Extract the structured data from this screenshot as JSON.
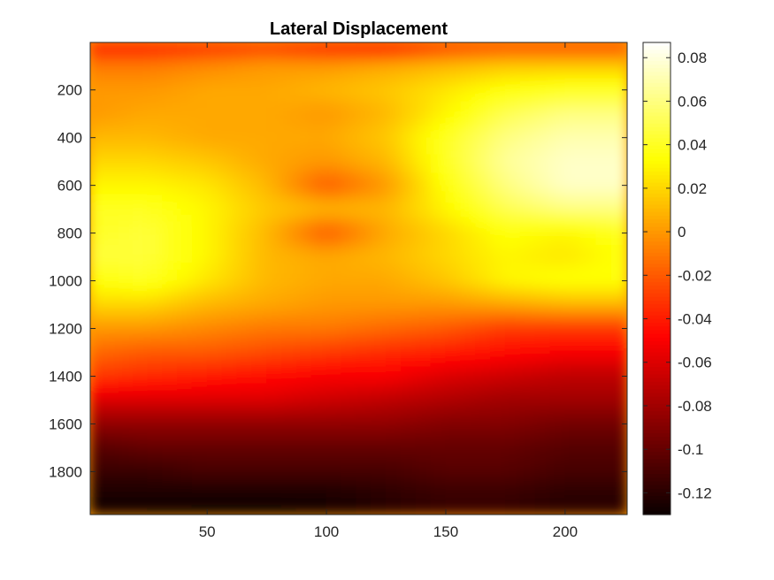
{
  "chart_data": {
    "type": "heatmap",
    "title": "Lateral Displacement",
    "xlabel": "",
    "ylabel": "",
    "xlim": [
      1,
      226
    ],
    "ylim": [
      1,
      1980
    ],
    "y_direction": "reversed",
    "x_ticks": [
      50,
      100,
      150,
      200
    ],
    "x_tick_labels": [
      "50",
      "100",
      "150",
      "200"
    ],
    "y_ticks": [
      200,
      400,
      600,
      800,
      1000,
      1200,
      1400,
      1600,
      1800
    ],
    "y_tick_labels": [
      "200",
      "400",
      "600",
      "800",
      "1000",
      "1200",
      "1400",
      "1600",
      "1800"
    ],
    "colormap": "hot",
    "clim": [
      -0.13,
      0.087
    ],
    "colorbar_ticks": [
      0.08,
      0.06,
      0.04,
      0.02,
      0,
      -0.02,
      -0.04,
      -0.06,
      -0.08,
      -0.1,
      -0.12
    ],
    "colorbar_tick_labels": [
      "0.08",
      "0.06",
      "0.04",
      "0.02",
      "0",
      "-0.02",
      "-0.04",
      "-0.06",
      "-0.08",
      "-0.1",
      "-0.12"
    ],
    "grid": false,
    "colorbar": "right",
    "grid_x": [
      1,
      25,
      50,
      75,
      100,
      125,
      150,
      175,
      200,
      226
    ],
    "grid_y": [
      1,
      100,
      200,
      300,
      400,
      500,
      600,
      700,
      800,
      900,
      1000,
      1100,
      1200,
      1300,
      1400,
      1500,
      1600,
      1700,
      1800,
      1900,
      1980
    ],
    "values": [
      [
        -0.045,
        -0.045,
        -0.04,
        -0.035,
        -0.045,
        -0.05,
        -0.035,
        -0.03,
        -0.03,
        -0.03
      ],
      [
        -0.01,
        -0.01,
        -0.005,
        0.0,
        0.0,
        0.005,
        0.01,
        0.015,
        0.015,
        0.015
      ],
      [
        0.0,
        0.0,
        0.005,
        0.005,
        0.01,
        0.015,
        0.025,
        0.035,
        0.04,
        0.04
      ],
      [
        0.0,
        0.005,
        0.005,
        0.005,
        0.0,
        0.01,
        0.03,
        0.05,
        0.06,
        0.06
      ],
      [
        0.01,
        0.01,
        0.005,
        0.005,
        0.005,
        0.015,
        0.04,
        0.06,
        0.07,
        0.07
      ],
      [
        0.02,
        0.02,
        0.015,
        0.005,
        0.0,
        0.01,
        0.04,
        0.065,
        0.075,
        0.075
      ],
      [
        0.03,
        0.03,
        0.025,
        0.01,
        -0.02,
        0.0,
        0.035,
        0.06,
        0.075,
        0.075
      ],
      [
        0.04,
        0.04,
        0.03,
        0.015,
        0.01,
        0.01,
        0.03,
        0.05,
        0.06,
        0.06
      ],
      [
        0.04,
        0.045,
        0.03,
        0.01,
        -0.02,
        0.005,
        0.02,
        0.035,
        0.03,
        0.04
      ],
      [
        0.045,
        0.045,
        0.03,
        0.01,
        0.005,
        0.01,
        0.02,
        0.03,
        0.025,
        0.035
      ],
      [
        0.035,
        0.04,
        0.025,
        0.01,
        0.005,
        0.005,
        0.015,
        0.03,
        0.035,
        0.035
      ],
      [
        0.02,
        0.02,
        0.01,
        0.005,
        0.0,
        0.0,
        0.0,
        0.005,
        0.01,
        0.01
      ],
      [
        0.0,
        0.0,
        -0.005,
        -0.01,
        -0.01,
        -0.015,
        -0.02,
        -0.03,
        -0.03,
        -0.03
      ],
      [
        -0.015,
        -0.02,
        -0.02,
        -0.025,
        -0.03,
        -0.035,
        -0.04,
        -0.045,
        -0.05,
        -0.05
      ],
      [
        -0.03,
        -0.035,
        -0.04,
        -0.045,
        -0.05,
        -0.05,
        -0.06,
        -0.065,
        -0.07,
        -0.07
      ],
      [
        -0.06,
        -0.06,
        -0.06,
        -0.06,
        -0.065,
        -0.07,
        -0.075,
        -0.08,
        -0.08,
        -0.08
      ],
      [
        -0.085,
        -0.085,
        -0.085,
        -0.085,
        -0.085,
        -0.085,
        -0.09,
        -0.09,
        -0.095,
        -0.095
      ],
      [
        -0.105,
        -0.1,
        -0.1,
        -0.1,
        -0.1,
        -0.1,
        -0.1,
        -0.1,
        -0.105,
        -0.105
      ],
      [
        -0.115,
        -0.115,
        -0.11,
        -0.11,
        -0.11,
        -0.11,
        -0.105,
        -0.105,
        -0.11,
        -0.11
      ],
      [
        -0.125,
        -0.125,
        -0.125,
        -0.125,
        -0.125,
        -0.12,
        -0.115,
        -0.115,
        -0.12,
        -0.12
      ],
      [
        -0.125,
        -0.128,
        -0.13,
        -0.13,
        -0.125,
        -0.12,
        -0.115,
        -0.115,
        -0.12,
        -0.12
      ]
    ]
  }
}
